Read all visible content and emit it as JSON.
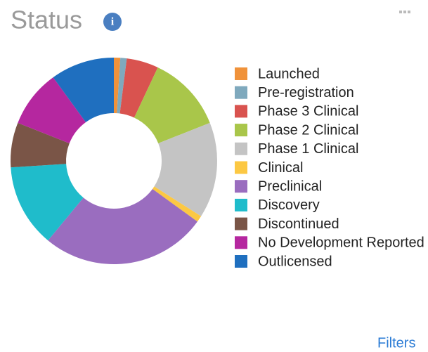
{
  "title": "Status",
  "info_icon": "i",
  "filters": "Filters",
  "chart_data": {
    "type": "donut",
    "categories": [
      "Launched",
      "Pre-registration",
      "Phase 3 Clinical",
      "Phase 2 Clinical",
      "Phase 1 Clinical",
      "Clinical",
      "Preclinical",
      "Discovery",
      "Discontinued",
      "No Development Reported",
      "Outlicensed"
    ],
    "values": [
      1,
      1,
      5,
      12,
      15,
      1,
      26,
      13,
      7,
      9,
      10
    ],
    "colors": [
      "#f0923a",
      "#7fa9bd",
      "#d9534f",
      "#a9c64a",
      "#c4c4c4",
      "#fcc843",
      "#9a6dbf",
      "#1fbccb",
      "#7a5547",
      "#b5279f",
      "#1f6fbf"
    ],
    "legend": "right"
  }
}
